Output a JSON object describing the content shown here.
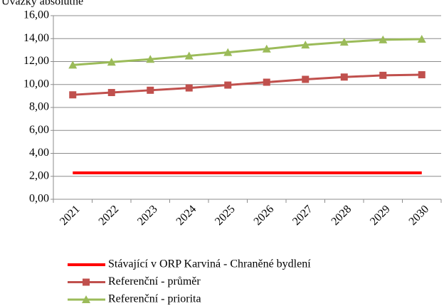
{
  "chart_data": {
    "type": "line",
    "title": "Úvazky absolutně",
    "categories": [
      "2021",
      "2022",
      "2023",
      "2024",
      "2025",
      "2026",
      "2027",
      "2028",
      "2029",
      "2030"
    ],
    "series": [
      {
        "name": "Stávající v ORP Karviná - Chraněné bydlení",
        "color": "#ff0000",
        "values": [
          2.3,
          2.3,
          2.3,
          2.3,
          2.3,
          2.3,
          2.3,
          2.3,
          2.3,
          2.3
        ]
      },
      {
        "name": "Referenční - průměr",
        "color": "#c0504d",
        "marker": "square",
        "values": [
          9.1,
          9.3,
          9.5,
          9.7,
          9.95,
          10.2,
          10.45,
          10.65,
          10.8,
          10.85
        ]
      },
      {
        "name": "Referenční - priorita",
        "color": "#9bbb59",
        "marker": "triangle",
        "values": [
          11.7,
          11.95,
          12.2,
          12.5,
          12.8,
          13.1,
          13.45,
          13.7,
          13.9,
          13.95
        ]
      }
    ],
    "ylim": [
      0,
      16
    ],
    "yticks": [
      {
        "value": 0,
        "label": "0,00"
      },
      {
        "value": 2,
        "label": "2,00"
      },
      {
        "value": 4,
        "label": "4,00"
      },
      {
        "value": 6,
        "label": "6,00"
      },
      {
        "value": 8,
        "label": "8,00"
      },
      {
        "value": 10,
        "label": "10,00"
      },
      {
        "value": 12,
        "label": "12,00"
      },
      {
        "value": 14,
        "label": "14,00"
      },
      {
        "value": 16,
        "label": "16,00"
      }
    ],
    "grid": true
  }
}
